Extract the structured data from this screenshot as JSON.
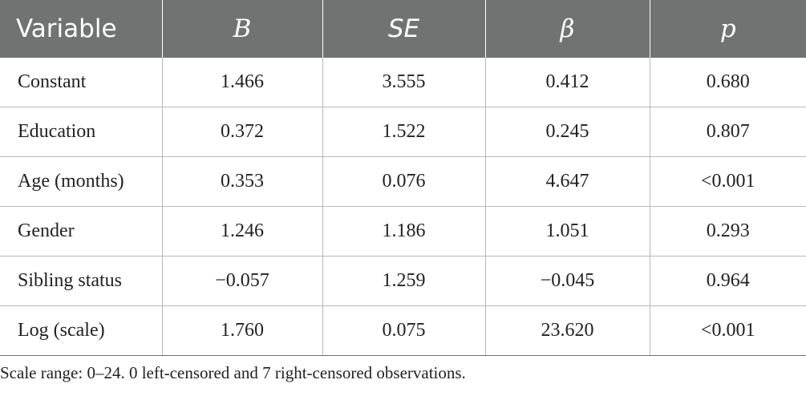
{
  "table": {
    "headers": [
      "Variable",
      "B",
      "SE",
      "β",
      "p"
    ],
    "rows": [
      {
        "variable": "Constant",
        "b": "1.466",
        "se": "3.555",
        "beta": "0.412",
        "p": "0.680"
      },
      {
        "variable": "Education",
        "b": "0.372",
        "se": "1.522",
        "beta": "0.245",
        "p": "0.807"
      },
      {
        "variable": "Age (months)",
        "b": "0.353",
        "se": "0.076",
        "beta": "4.647",
        "p": "<0.001"
      },
      {
        "variable": "Gender",
        "b": "1.246",
        "se": "1.186",
        "beta": "1.051",
        "p": "0.293"
      },
      {
        "variable": "Sibling status",
        "b": "−0.057",
        "se": "1.259",
        "beta": "−0.045",
        "p": "0.964"
      },
      {
        "variable": "Log (scale)",
        "b": "1.760",
        "se": "0.075",
        "beta": "23.620",
        "p": "<0.001"
      }
    ]
  },
  "footnote": "Scale range: 0–24. 0 left-censored and 7 right-censored observations.",
  "colors": {
    "header_background": "#707372",
    "header_text": "#ffffff",
    "grid_lines": "#b9b9b9"
  }
}
